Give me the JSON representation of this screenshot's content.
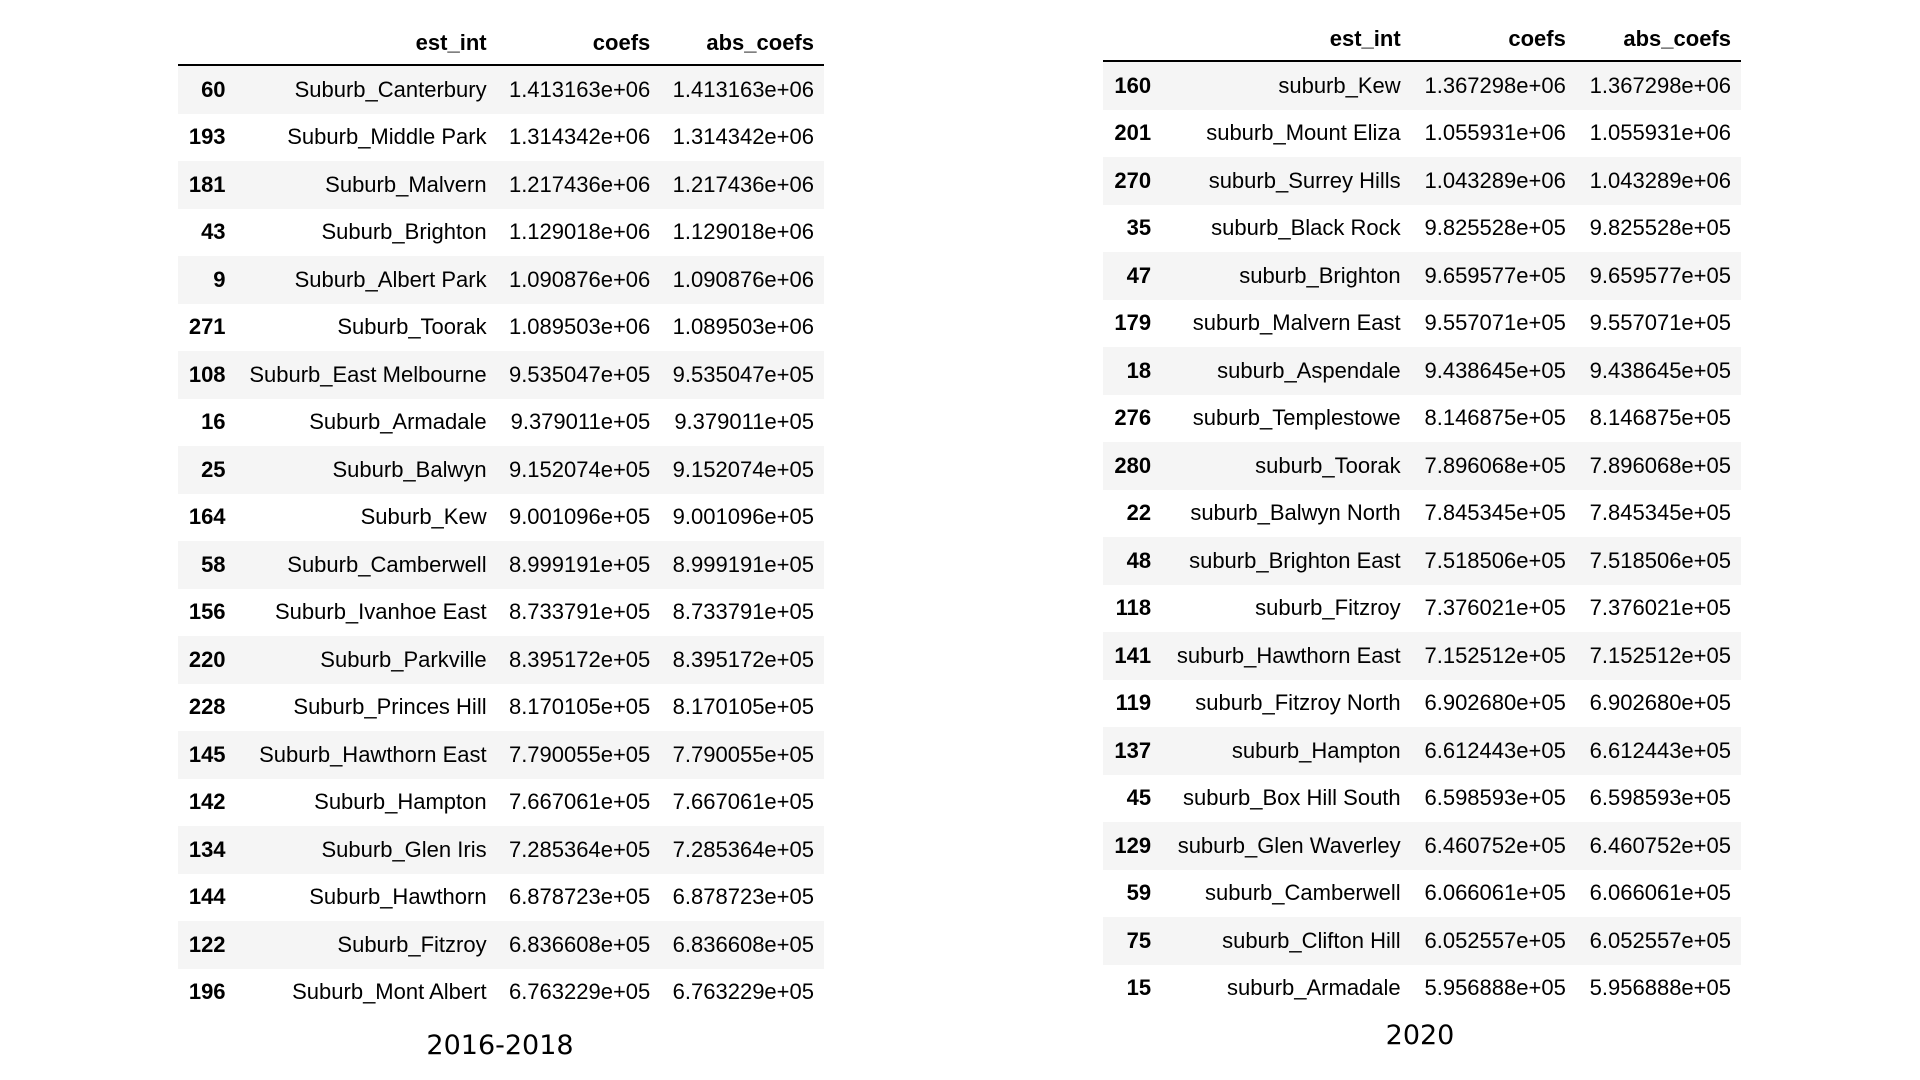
{
  "columns": [
    "",
    "est_int",
    "coefs",
    "abs_coefs"
  ],
  "left": {
    "caption": "2016-2018",
    "rows": [
      {
        "idx": "60",
        "est_int": "Suburb_Canterbury",
        "coefs": "1.413163e+06",
        "abs_coefs": "1.413163e+06"
      },
      {
        "idx": "193",
        "est_int": "Suburb_Middle Park",
        "coefs": "1.314342e+06",
        "abs_coefs": "1.314342e+06"
      },
      {
        "idx": "181",
        "est_int": "Suburb_Malvern",
        "coefs": "1.217436e+06",
        "abs_coefs": "1.217436e+06"
      },
      {
        "idx": "43",
        "est_int": "Suburb_Brighton",
        "coefs": "1.129018e+06",
        "abs_coefs": "1.129018e+06"
      },
      {
        "idx": "9",
        "est_int": "Suburb_Albert Park",
        "coefs": "1.090876e+06",
        "abs_coefs": "1.090876e+06"
      },
      {
        "idx": "271",
        "est_int": "Suburb_Toorak",
        "coefs": "1.089503e+06",
        "abs_coefs": "1.089503e+06"
      },
      {
        "idx": "108",
        "est_int": "Suburb_East Melbourne",
        "coefs": "9.535047e+05",
        "abs_coefs": "9.535047e+05"
      },
      {
        "idx": "16",
        "est_int": "Suburb_Armadale",
        "coefs": "9.379011e+05",
        "abs_coefs": "9.379011e+05"
      },
      {
        "idx": "25",
        "est_int": "Suburb_Balwyn",
        "coefs": "9.152074e+05",
        "abs_coefs": "9.152074e+05"
      },
      {
        "idx": "164",
        "est_int": "Suburb_Kew",
        "coefs": "9.001096e+05",
        "abs_coefs": "9.001096e+05"
      },
      {
        "idx": "58",
        "est_int": "Suburb_Camberwell",
        "coefs": "8.999191e+05",
        "abs_coefs": "8.999191e+05"
      },
      {
        "idx": "156",
        "est_int": "Suburb_Ivanhoe East",
        "coefs": "8.733791e+05",
        "abs_coefs": "8.733791e+05"
      },
      {
        "idx": "220",
        "est_int": "Suburb_Parkville",
        "coefs": "8.395172e+05",
        "abs_coefs": "8.395172e+05"
      },
      {
        "idx": "228",
        "est_int": "Suburb_Princes Hill",
        "coefs": "8.170105e+05",
        "abs_coefs": "8.170105e+05"
      },
      {
        "idx": "145",
        "est_int": "Suburb_Hawthorn East",
        "coefs": "7.790055e+05",
        "abs_coefs": "7.790055e+05"
      },
      {
        "idx": "142",
        "est_int": "Suburb_Hampton",
        "coefs": "7.667061e+05",
        "abs_coefs": "7.667061e+05"
      },
      {
        "idx": "134",
        "est_int": "Suburb_Glen Iris",
        "coefs": "7.285364e+05",
        "abs_coefs": "7.285364e+05"
      },
      {
        "idx": "144",
        "est_int": "Suburb_Hawthorn",
        "coefs": "6.878723e+05",
        "abs_coefs": "6.878723e+05"
      },
      {
        "idx": "122",
        "est_int": "Suburb_Fitzroy",
        "coefs": "6.836608e+05",
        "abs_coefs": "6.836608e+05"
      },
      {
        "idx": "196",
        "est_int": "Suburb_Mont Albert",
        "coefs": "6.763229e+05",
        "abs_coefs": "6.763229e+05"
      }
    ]
  },
  "right": {
    "caption": "2020",
    "rows": [
      {
        "idx": "160",
        "est_int": "suburb_Kew",
        "coefs": "1.367298e+06",
        "abs_coefs": "1.367298e+06"
      },
      {
        "idx": "201",
        "est_int": "suburb_Mount Eliza",
        "coefs": "1.055931e+06",
        "abs_coefs": "1.055931e+06"
      },
      {
        "idx": "270",
        "est_int": "suburb_Surrey Hills",
        "coefs": "1.043289e+06",
        "abs_coefs": "1.043289e+06"
      },
      {
        "idx": "35",
        "est_int": "suburb_Black Rock",
        "coefs": "9.825528e+05",
        "abs_coefs": "9.825528e+05"
      },
      {
        "idx": "47",
        "est_int": "suburb_Brighton",
        "coefs": "9.659577e+05",
        "abs_coefs": "9.659577e+05"
      },
      {
        "idx": "179",
        "est_int": "suburb_Malvern East",
        "coefs": "9.557071e+05",
        "abs_coefs": "9.557071e+05"
      },
      {
        "idx": "18",
        "est_int": "suburb_Aspendale",
        "coefs": "9.438645e+05",
        "abs_coefs": "9.438645e+05"
      },
      {
        "idx": "276",
        "est_int": "suburb_Templestowe",
        "coefs": "8.146875e+05",
        "abs_coefs": "8.146875e+05"
      },
      {
        "idx": "280",
        "est_int": "suburb_Toorak",
        "coefs": "7.896068e+05",
        "abs_coefs": "7.896068e+05"
      },
      {
        "idx": "22",
        "est_int": "suburb_Balwyn North",
        "coefs": "7.845345e+05",
        "abs_coefs": "7.845345e+05"
      },
      {
        "idx": "48",
        "est_int": "suburb_Brighton East",
        "coefs": "7.518506e+05",
        "abs_coefs": "7.518506e+05"
      },
      {
        "idx": "118",
        "est_int": "suburb_Fitzroy",
        "coefs": "7.376021e+05",
        "abs_coefs": "7.376021e+05"
      },
      {
        "idx": "141",
        "est_int": "suburb_Hawthorn East",
        "coefs": "7.152512e+05",
        "abs_coefs": "7.152512e+05"
      },
      {
        "idx": "119",
        "est_int": "suburb_Fitzroy North",
        "coefs": "6.902680e+05",
        "abs_coefs": "6.902680e+05"
      },
      {
        "idx": "137",
        "est_int": "suburb_Hampton",
        "coefs": "6.612443e+05",
        "abs_coefs": "6.612443e+05"
      },
      {
        "idx": "45",
        "est_int": "suburb_Box Hill South",
        "coefs": "6.598593e+05",
        "abs_coefs": "6.598593e+05"
      },
      {
        "idx": "129",
        "est_int": "suburb_Glen Waverley",
        "coefs": "6.460752e+05",
        "abs_coefs": "6.460752e+05"
      },
      {
        "idx": "59",
        "est_int": "suburb_Camberwell",
        "coefs": "6.066061e+05",
        "abs_coefs": "6.066061e+05"
      },
      {
        "idx": "75",
        "est_int": "suburb_Clifton Hill",
        "coefs": "6.052557e+05",
        "abs_coefs": "6.052557e+05"
      },
      {
        "idx": "15",
        "est_int": "suburb_Armadale",
        "coefs": "5.956888e+05",
        "abs_coefs": "5.956888e+05"
      }
    ]
  }
}
